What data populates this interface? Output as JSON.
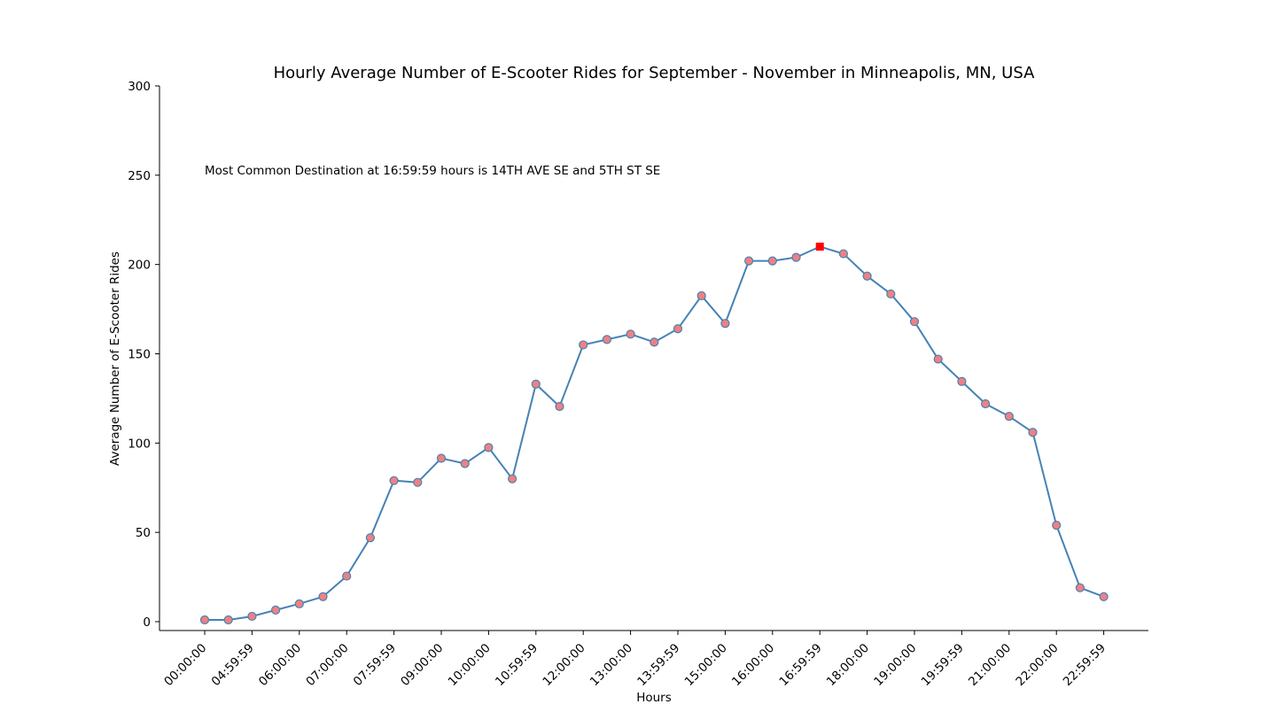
{
  "chart_data": {
    "type": "line",
    "title": "Hourly Average Number of E-Scooter Rides for September - November in Minneapolis, MN, USA",
    "xlabel": "Hours",
    "ylabel": "Average Number of E-Scooter Rides",
    "annotation": "Most Common Destination at 16:59:59 hours is 14TH AVE SE and 5TH ST SE",
    "ylim": [
      0,
      300
    ],
    "yticks": [
      0,
      50,
      100,
      150,
      200,
      250,
      300
    ],
    "xtick_labels": [
      "00:00:00",
      "04:59:59",
      "06:00:00",
      "07:00:00",
      "07:59:59",
      "09:00:00",
      "10:00:00",
      "10:59:59",
      "12:00:00",
      "13:00:00",
      "13:59:59",
      "15:00:00",
      "16:00:00",
      "16:59:59",
      "18:00:00",
      "19:00:00",
      "19:59:59",
      "21:00:00",
      "22:00:00",
      "22:59:59"
    ],
    "values": [
      1,
      1,
      3,
      6.5,
      10,
      14,
      25.5,
      47,
      79,
      78,
      91.5,
      88.5,
      97.5,
      80,
      133,
      120.5,
      155,
      158,
      161,
      156.5,
      164,
      182.5,
      167,
      202,
      202,
      204,
      210,
      206,
      193.5,
      183.5,
      168,
      147,
      134.5,
      122,
      115,
      106,
      54,
      19,
      14
    ],
    "highlight_index": 26,
    "line_color": "#4682b4",
    "marker_color": "#f08080",
    "highlight_color": "#ff0000",
    "grid": false
  }
}
